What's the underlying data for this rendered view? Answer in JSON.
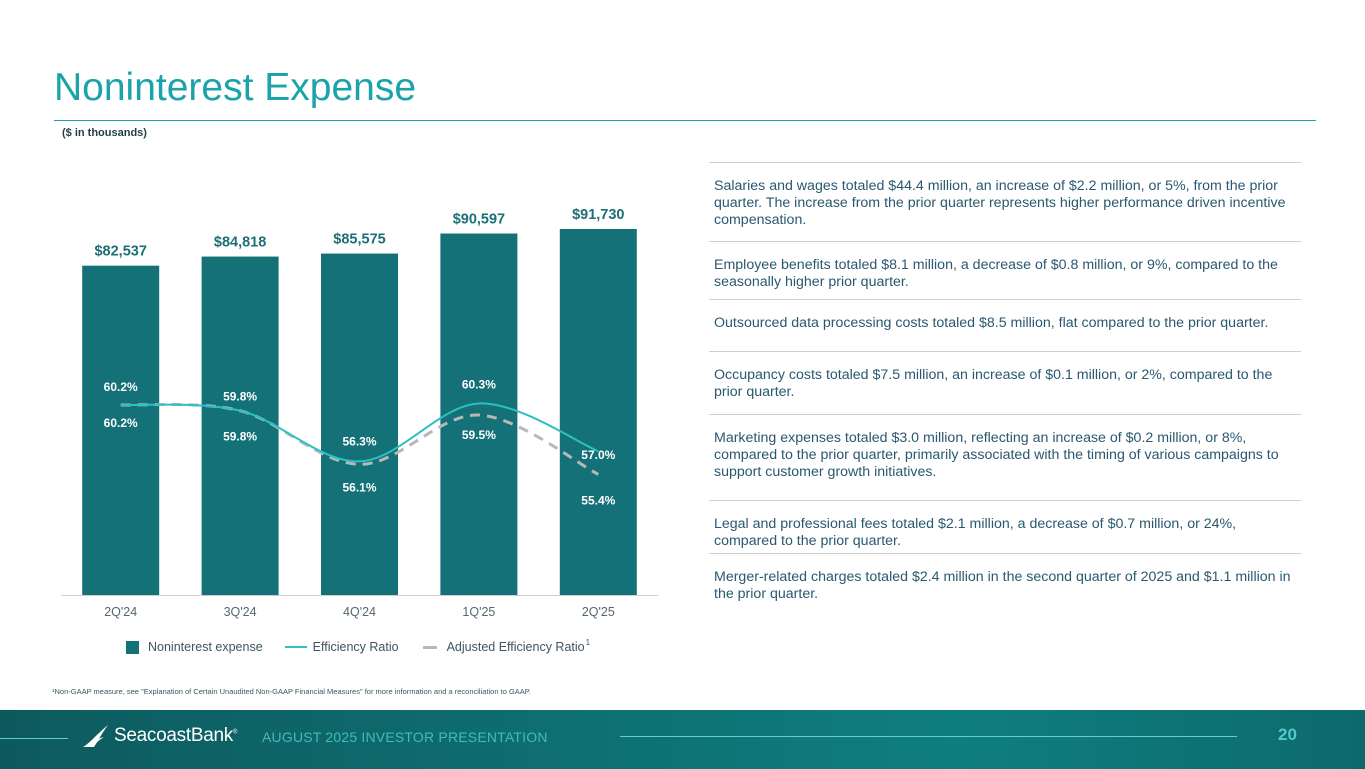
{
  "slide": {
    "title": "Noninterest Expense",
    "subtitle": "($ in thousands)",
    "footnote": "¹Non-GAAP measure, see \"Explanation of Certain Unaudited Non-GAAP Financial Measures\" for more information and a reconciliation to GAAP.",
    "bullets": [
      "Salaries and wages totaled $44.4 million, an increase of $2.2 million, or 5%, from the prior quarter. The increase from the prior quarter represents higher performance driven incentive compensation.",
      "Employee benefits totaled $8.1 million, a decrease of $0.8 million, or 9%, compared to the seasonally higher prior quarter.",
      "Outsourced data processing costs totaled $8.5 million, flat compared to the prior quarter.",
      "Occupancy costs totaled $7.5 million, an increase of $0.1 million, or 2%, compared to the prior quarter.",
      "Marketing expenses totaled $3.0 million, reflecting an increase of $0.2 million, or 8%, compared to the prior quarter, primarily associated with the timing of various campaigns to support customer growth initiatives.",
      "Legal and professional fees totaled $2.1 million, a decrease of $0.7 million, or 24%, compared to the prior quarter.",
      "Merger-related charges totaled $2.4 million in the second quarter of 2025 and $1.1 million in the prior quarter."
    ]
  },
  "legend": {
    "bars": "Noninterest expense",
    "line": "Efficiency Ratio",
    "dashed": "Adjusted Efficiency Ratio",
    "dashed_sup": "1"
  },
  "footer": {
    "brand": "SeacoastBank",
    "brand_mark": "®",
    "tagline": "AUGUST 2025 INVESTOR PRESENTATION",
    "page": "20"
  },
  "colors": {
    "bar": "#137177",
    "line": "#2bc1c4",
    "dashed": "#b8b8b8",
    "bar_label": "#1c6f76",
    "point_label": "#ffffff"
  },
  "chart_data": {
    "type": "bar",
    "categories": [
      "2Q'24",
      "3Q'24",
      "4Q'24",
      "1Q'25",
      "2Q'25"
    ],
    "series": [
      {
        "name": "Noninterest expense",
        "kind": "bar",
        "values": [
          82537,
          84818,
          85575,
          90597,
          91730
        ],
        "labels": [
          "$82,537",
          "$84,818",
          "$85,575",
          "$90,597",
          "$91,730"
        ]
      },
      {
        "name": "Efficiency Ratio",
        "kind": "line",
        "values": [
          60.2,
          59.8,
          56.3,
          60.3,
          57.0
        ],
        "labels": [
          "60.2%",
          "59.8%",
          "56.3%",
          "60.3%",
          "57.0%"
        ]
      },
      {
        "name": "Adjusted Efficiency Ratio",
        "kind": "dashed-line",
        "values": [
          60.2,
          59.8,
          56.1,
          59.5,
          55.4
        ],
        "labels": [
          "60.2%",
          "59.8%",
          "56.1%",
          "59.5%",
          "55.4%"
        ]
      }
    ],
    "ylim_bars": [
      0,
      100000
    ],
    "ylim_ratio": [
      45,
      70
    ],
    "grid": false,
    "legend": "bottom"
  }
}
